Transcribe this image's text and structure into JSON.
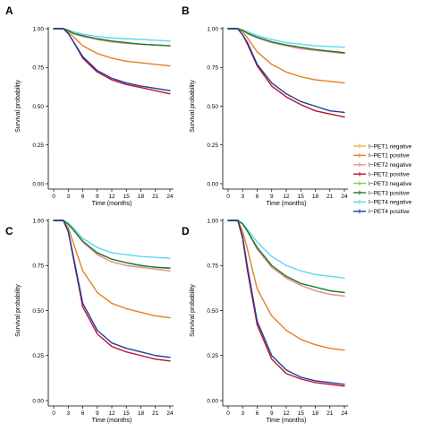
{
  "figure": {
    "xlabel": "Time (months)",
    "ylabel": "Survival probability",
    "legend_placement": "right-middle",
    "legend": [
      {
        "key": "pet1_neg",
        "label": "I−PET1 negative",
        "color": "#F5B041"
      },
      {
        "key": "pet1_pos",
        "label": "I−PET1 positive",
        "color": "#E67E22"
      },
      {
        "key": "pet2_neg",
        "label": "I−PET2 negative",
        "color": "#F08AA0"
      },
      {
        "key": "pet2_pos",
        "label": "I−PET2 positive",
        "color": "#C0102A"
      },
      {
        "key": "pet3_neg",
        "label": "I−PET3 negative",
        "color": "#76D04B"
      },
      {
        "key": "pet3_pos",
        "label": "I−PET3 positive",
        "color": "#1E7A2E"
      },
      {
        "key": "pet4_neg",
        "label": "I−PET4 negative",
        "color": "#5CD6F5"
      },
      {
        "key": "pet4_pos",
        "label": "I−PET4 positive",
        "color": "#1F3C9A"
      }
    ]
  },
  "chart_data": [
    {
      "panel": "A",
      "type": "line",
      "xlabel": "Time (months)",
      "ylabel": "Survival probability",
      "xlim": [
        0,
        24
      ],
      "ylim": [
        0,
        1
      ],
      "xticks": [
        "0",
        "3",
        "6",
        "9",
        "12",
        "15",
        "18",
        "21",
        "24"
      ],
      "yticks": [
        "0.00",
        "0.25",
        "0.50",
        "0.75",
        "1.00"
      ],
      "grid": false,
      "x": [
        0,
        2,
        3,
        4,
        6,
        9,
        12,
        15,
        18,
        21,
        24
      ],
      "series": [
        {
          "name": "I−PET1 negative",
          "key": "pet1_neg",
          "values": [
            1.0,
            1.0,
            0.99,
            0.97,
            0.95,
            0.93,
            0.915,
            0.905,
            0.9,
            0.895,
            0.89
          ]
        },
        {
          "name": "I−PET1 positive",
          "key": "pet1_pos",
          "values": [
            1.0,
            1.0,
            0.98,
            0.95,
            0.89,
            0.84,
            0.81,
            0.79,
            0.78,
            0.77,
            0.76
          ]
        },
        {
          "name": "I−PET2 negative",
          "key": "pet2_neg",
          "values": [
            1.0,
            1.0,
            0.99,
            0.97,
            0.95,
            0.93,
            0.915,
            0.905,
            0.9,
            0.895,
            0.89
          ]
        },
        {
          "name": "I−PET2 positive",
          "key": "pet2_pos",
          "values": [
            1.0,
            1.0,
            0.97,
            0.92,
            0.81,
            0.72,
            0.67,
            0.64,
            0.62,
            0.6,
            0.58
          ]
        },
        {
          "name": "I−PET3 negative",
          "key": "pet3_neg",
          "values": [
            1.0,
            1.0,
            0.99,
            0.97,
            0.955,
            0.935,
            0.92,
            0.91,
            0.9,
            0.895,
            0.89
          ]
        },
        {
          "name": "I−PET3 positive",
          "key": "pet3_pos",
          "values": [
            1.0,
            1.0,
            0.99,
            0.97,
            0.955,
            0.935,
            0.92,
            0.91,
            0.9,
            0.895,
            0.89
          ]
        },
        {
          "name": "I−PET4 negative",
          "key": "pet4_neg",
          "values": [
            1.0,
            1.0,
            0.99,
            0.98,
            0.965,
            0.95,
            0.94,
            0.935,
            0.93,
            0.925,
            0.92
          ]
        },
        {
          "name": "I−PET4 positive",
          "key": "pet4_pos",
          "values": [
            1.0,
            1.0,
            0.97,
            0.92,
            0.82,
            0.73,
            0.68,
            0.65,
            0.63,
            0.615,
            0.6
          ]
        }
      ]
    },
    {
      "panel": "B",
      "type": "line",
      "xlabel": "Time (months)",
      "ylabel": "Survival probability",
      "xlim": [
        0,
        24
      ],
      "ylim": [
        0,
        1
      ],
      "xticks": [
        "0",
        "3",
        "6",
        "9",
        "12",
        "15",
        "18",
        "21",
        "24"
      ],
      "yticks": [
        "0.00",
        "0.25",
        "0.50",
        "0.75",
        "1.00"
      ],
      "grid": false,
      "x": [
        0,
        2,
        3,
        4,
        6,
        9,
        12,
        15,
        18,
        21,
        24
      ],
      "series": [
        {
          "name": "I−PET1 negative",
          "key": "pet1_neg",
          "values": [
            1.0,
            1.0,
            0.99,
            0.97,
            0.94,
            0.91,
            0.89,
            0.87,
            0.86,
            0.85,
            0.84
          ]
        },
        {
          "name": "I−PET1 positive",
          "key": "pet1_pos",
          "values": [
            1.0,
            1.0,
            0.98,
            0.94,
            0.85,
            0.77,
            0.72,
            0.69,
            0.67,
            0.66,
            0.65
          ]
        },
        {
          "name": "I−PET2 negative",
          "key": "pet2_neg",
          "values": [
            1.0,
            1.0,
            0.99,
            0.97,
            0.94,
            0.91,
            0.89,
            0.87,
            0.86,
            0.85,
            0.84
          ]
        },
        {
          "name": "I−PET2 positive",
          "key": "pet2_pos",
          "values": [
            1.0,
            1.0,
            0.96,
            0.9,
            0.76,
            0.63,
            0.56,
            0.51,
            0.47,
            0.45,
            0.43
          ]
        },
        {
          "name": "I−PET3 negative",
          "key": "pet3_neg",
          "values": [
            1.0,
            1.0,
            0.99,
            0.97,
            0.945,
            0.915,
            0.895,
            0.88,
            0.865,
            0.855,
            0.845
          ]
        },
        {
          "name": "I−PET3 positive",
          "key": "pet3_pos",
          "values": [
            1.0,
            1.0,
            0.99,
            0.97,
            0.945,
            0.915,
            0.895,
            0.88,
            0.865,
            0.855,
            0.845
          ]
        },
        {
          "name": "I−PET4 negative",
          "key": "pet4_neg",
          "values": [
            1.0,
            1.0,
            0.99,
            0.98,
            0.955,
            0.93,
            0.91,
            0.9,
            0.89,
            0.885,
            0.88
          ]
        },
        {
          "name": "I−PET4 positive",
          "key": "pet4_pos",
          "values": [
            1.0,
            1.0,
            0.96,
            0.91,
            0.77,
            0.65,
            0.58,
            0.53,
            0.5,
            0.47,
            0.46
          ]
        }
      ]
    },
    {
      "panel": "C",
      "type": "line",
      "xlabel": "Time (months)",
      "ylabel": "Survival probability",
      "xlim": [
        0,
        24
      ],
      "ylim": [
        0,
        1
      ],
      "xticks": [
        "0",
        "3",
        "6",
        "9",
        "12",
        "15",
        "18",
        "21",
        "24"
      ],
      "yticks": [
        "0.00",
        "0.25",
        "0.50",
        "0.75",
        "1.00"
      ],
      "grid": false,
      "x": [
        0,
        2,
        3,
        4,
        6,
        9,
        12,
        15,
        18,
        21,
        24
      ],
      "series": [
        {
          "name": "I−PET1 negative",
          "key": "pet1_neg",
          "values": [
            1.0,
            1.0,
            0.98,
            0.95,
            0.88,
            0.81,
            0.77,
            0.75,
            0.74,
            0.73,
            0.72
          ]
        },
        {
          "name": "I−PET1 positive",
          "key": "pet1_pos",
          "values": [
            1.0,
            1.0,
            0.96,
            0.88,
            0.72,
            0.6,
            0.54,
            0.51,
            0.49,
            0.47,
            0.46
          ]
        },
        {
          "name": "I−PET2 negative",
          "key": "pet2_neg",
          "values": [
            1.0,
            1.0,
            0.98,
            0.95,
            0.88,
            0.81,
            0.77,
            0.75,
            0.74,
            0.73,
            0.72
          ]
        },
        {
          "name": "I−PET2 positive",
          "key": "pet2_pos",
          "values": [
            1.0,
            1.0,
            0.94,
            0.8,
            0.52,
            0.37,
            0.3,
            0.27,
            0.25,
            0.23,
            0.22
          ]
        },
        {
          "name": "I−PET3 negative",
          "key": "pet3_neg",
          "values": [
            1.0,
            1.0,
            0.98,
            0.95,
            0.885,
            0.82,
            0.785,
            0.765,
            0.75,
            0.74,
            0.735
          ]
        },
        {
          "name": "I−PET3 positive",
          "key": "pet3_pos",
          "values": [
            1.0,
            1.0,
            0.98,
            0.95,
            0.885,
            0.82,
            0.785,
            0.765,
            0.75,
            0.74,
            0.735
          ]
        },
        {
          "name": "I−PET4 negative",
          "key": "pet4_neg",
          "values": [
            1.0,
            1.0,
            0.985,
            0.96,
            0.9,
            0.85,
            0.82,
            0.81,
            0.8,
            0.795,
            0.79
          ]
        },
        {
          "name": "I−PET4 positive",
          "key": "pet4_pos",
          "values": [
            1.0,
            1.0,
            0.94,
            0.81,
            0.54,
            0.39,
            0.32,
            0.29,
            0.27,
            0.25,
            0.24
          ]
        }
      ]
    },
    {
      "panel": "D",
      "type": "line",
      "xlabel": "Time (months)",
      "ylabel": "Survival probability",
      "xlim": [
        0,
        24
      ],
      "ylim": [
        0,
        1
      ],
      "xticks": [
        "0",
        "3",
        "6",
        "9",
        "12",
        "15",
        "18",
        "21",
        "24"
      ],
      "yticks": [
        "0.00",
        "0.25",
        "0.50",
        "0.75",
        "1.00"
      ],
      "grid": false,
      "x": [
        0,
        2,
        3,
        4,
        6,
        9,
        12,
        15,
        18,
        21,
        24
      ],
      "series": [
        {
          "name": "I−PET1 negative",
          "key": "pet1_neg",
          "values": [
            1.0,
            1.0,
            0.98,
            0.94,
            0.84,
            0.74,
            0.68,
            0.64,
            0.61,
            0.59,
            0.58
          ]
        },
        {
          "name": "I−PET1 positive",
          "key": "pet1_pos",
          "values": [
            1.0,
            1.0,
            0.94,
            0.84,
            0.62,
            0.47,
            0.39,
            0.34,
            0.31,
            0.29,
            0.28
          ]
        },
        {
          "name": "I−PET2 negative",
          "key": "pet2_neg",
          "values": [
            1.0,
            1.0,
            0.98,
            0.94,
            0.84,
            0.74,
            0.68,
            0.64,
            0.61,
            0.59,
            0.58
          ]
        },
        {
          "name": "I−PET2 positive",
          "key": "pet2_pos",
          "values": [
            1.0,
            1.0,
            0.9,
            0.72,
            0.42,
            0.23,
            0.15,
            0.12,
            0.1,
            0.09,
            0.08
          ]
        },
        {
          "name": "I−PET3 negative",
          "key": "pet3_neg",
          "values": [
            1.0,
            1.0,
            0.98,
            0.94,
            0.85,
            0.75,
            0.69,
            0.65,
            0.63,
            0.61,
            0.6
          ]
        },
        {
          "name": "I−PET3 positive",
          "key": "pet3_pos",
          "values": [
            1.0,
            1.0,
            0.98,
            0.94,
            0.85,
            0.75,
            0.69,
            0.65,
            0.63,
            0.61,
            0.6
          ]
        },
        {
          "name": "I−PET4 negative",
          "key": "pet4_neg",
          "values": [
            1.0,
            1.0,
            0.985,
            0.95,
            0.88,
            0.8,
            0.75,
            0.72,
            0.7,
            0.69,
            0.68
          ]
        },
        {
          "name": "I−PET4 positive",
          "key": "pet4_pos",
          "values": [
            1.0,
            1.0,
            0.91,
            0.74,
            0.44,
            0.25,
            0.17,
            0.13,
            0.11,
            0.1,
            0.09
          ]
        }
      ]
    }
  ]
}
